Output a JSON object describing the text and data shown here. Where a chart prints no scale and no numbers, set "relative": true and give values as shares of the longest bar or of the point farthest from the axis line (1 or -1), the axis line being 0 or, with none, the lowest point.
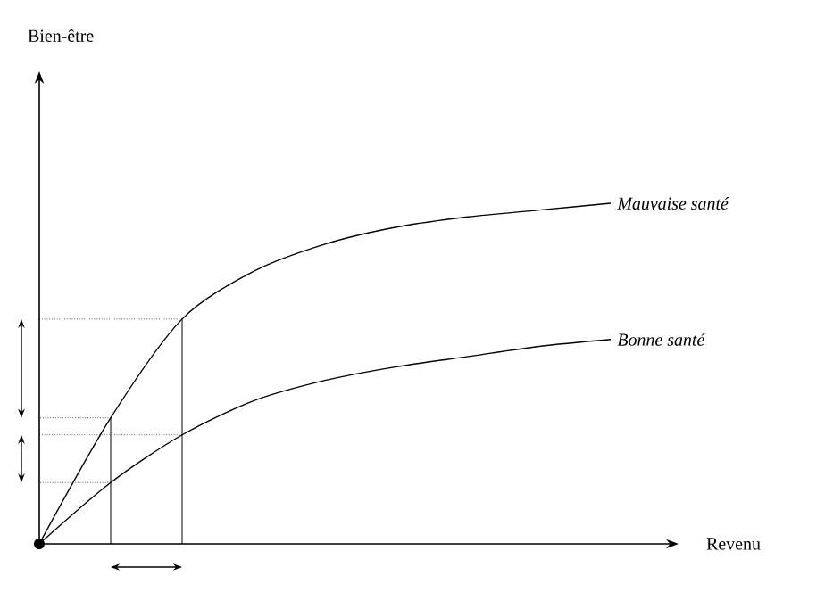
{
  "chart_data": {
    "type": "line",
    "relative": true,
    "xlabel": "Revenu",
    "annotations": [
      "Bien-être"
    ],
    "line_style": "solid",
    "categories": [
      null,
      null,
      null,
      null,
      null,
      null,
      null,
      null,
      null
    ],
    "series": [
      {
        "name": "*Mauvaise santé*",
        "color": "#000000",
        "values": [
          0,
          0.37,
          0.66,
          0.8,
          0.88,
          0.93,
          0.96,
          0.98,
          1
        ]
      },
      {
        "name": "*Bonne santé*",
        "color": "#000000",
        "values": [
          0,
          0.18,
          0.32,
          0.42,
          0.48,
          0.52,
          0.55,
          0.58,
          0.6
        ]
      }
    ]
  }
}
